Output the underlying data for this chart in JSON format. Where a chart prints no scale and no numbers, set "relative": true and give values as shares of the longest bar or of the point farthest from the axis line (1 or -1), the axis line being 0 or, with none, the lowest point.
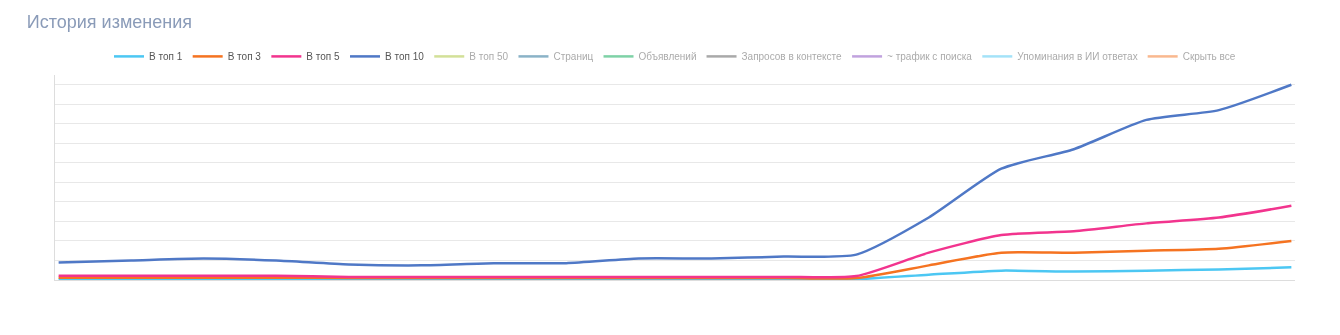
{
  "chart_data": {
    "type": "line",
    "title": "История изменения",
    "relative": true,
    "grid": "y",
    "legend": "top",
    "marker": "none",
    "line_style": "solid",
    "categories": [
      null,
      null,
      null,
      null,
      null,
      null,
      null,
      null,
      null,
      null,
      null,
      null,
      null,
      null,
      null,
      null,
      null,
      null
    ],
    "series": [
      {
        "name": "В топ 1",
        "color": "#4cc7f3",
        "values": [
          0.005,
          0.005,
          0.005,
          0.005,
          0.004,
          0.004,
          0.004,
          0.004,
          0.004,
          0.004,
          0.004,
          0.004,
          0.027,
          0.048,
          0.043,
          0.048,
          0.054,
          0.065
        ]
      },
      {
        "name": "В топ 3",
        "color": "#f57321",
        "values": [
          0.012,
          0.012,
          0.012,
          0.012,
          0.01,
          0.01,
          0.01,
          0.01,
          0.01,
          0.01,
          0.01,
          0.01,
          0.075,
          0.14,
          0.14,
          0.15,
          0.16,
          0.2
        ]
      },
      {
        "name": "В топ 5",
        "color": "#f2348e",
        "values": [
          0.022,
          0.022,
          0.022,
          0.022,
          0.016,
          0.016,
          0.016,
          0.016,
          0.016,
          0.016,
          0.016,
          0.02,
          0.14,
          0.23,
          0.25,
          0.29,
          0.32,
          0.38
        ]
      },
      {
        "name": "В топ 10",
        "color": "#4f78c6",
        "values": [
          0.09,
          0.1,
          0.11,
          0.1,
          0.08,
          0.075,
          0.086,
          0.086,
          0.11,
          0.11,
          0.12,
          0.13,
          0.32,
          0.57,
          0.67,
          0.82,
          0.87,
          1
        ]
      },
      {
        "name": "В топ 50",
        "color": "#a8c334",
        "values": [
          null,
          null,
          null,
          null,
          null,
          null,
          null,
          null,
          null,
          null,
          null,
          null,
          null,
          null,
          null,
          null,
          null,
          null
        ]
      },
      {
        "name": "Страниц",
        "color": "#176891",
        "values": [
          null,
          null,
          null,
          null,
          null,
          null,
          null,
          null,
          null,
          null,
          null,
          null,
          null,
          null,
          null,
          null,
          null,
          null
        ]
      },
      {
        "name": "Объявлений",
        "color": "#00a650",
        "values": [
          null,
          null,
          null,
          null,
          null,
          null,
          null,
          null,
          null,
          null,
          null,
          null,
          null,
          null,
          null,
          null,
          null,
          null
        ]
      },
      {
        "name": "Запросов в контексте",
        "color": "#555555",
        "values": [
          null,
          null,
          null,
          null,
          null,
          null,
          null,
          null,
          null,
          null,
          null,
          null,
          null,
          null,
          null,
          null,
          null,
          null
        ]
      },
      {
        "name": "~ трафик с поиска",
        "color": "#8448bf",
        "values": [
          null,
          null,
          null,
          null,
          null,
          null,
          null,
          null,
          null,
          null,
          null,
          null,
          null,
          null,
          null,
          null,
          null,
          null
        ]
      },
      {
        "name": "Упоминания в ИИ ответах",
        "color": "#4cc7f3",
        "values": [
          null,
          null,
          null,
          null,
          null,
          null,
          null,
          null,
          null,
          null,
          null,
          null,
          null,
          null,
          null,
          null,
          null,
          null
        ]
      },
      {
        "name": "Скрыть все",
        "color": "#f57321",
        "values": [
          null,
          null,
          null,
          null,
          null,
          null,
          null,
          null,
          null,
          null,
          null,
          null,
          null,
          null,
          null,
          null,
          null,
          null
        ]
      }
    ]
  }
}
